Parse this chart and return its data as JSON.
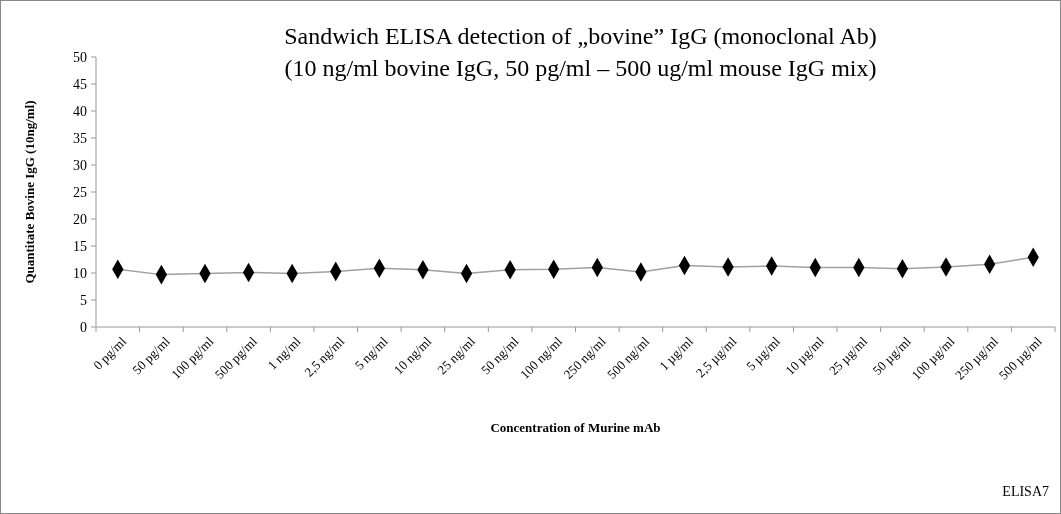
{
  "chart_data": {
    "type": "line",
    "title": "Sandwich ELISA  detection of „bovine” IgG (monoclonal Ab)",
    "subtitle": "(10 ng/ml bovine IgG, 50 pg/ml – 500 ug/ml mouse IgG mix)",
    "xlabel": "Concentration of Murine mAb",
    "ylabel": "Quantitate Bovine IgG (10ng/ml)",
    "categories": [
      "0 pg/ml",
      "50 pg/ml",
      "100 pg/ml",
      "500 pg/ml",
      "1 ng/ml",
      "2,5 ng/ml",
      "5 ng/ml",
      "10 ng/ml",
      "25 ng/ml",
      "50 ng/ml",
      "100 ng/ml",
      "250 ng/ml",
      "500 ng/ml",
      "1 µg/ml",
      "2,5 µg/ml",
      "5 µg/ml",
      "10 µg/ml",
      "25 µg/ml",
      "50 µg/ml",
      "100 µg/ml",
      "250 µg/ml",
      "500 µg/ml"
    ],
    "series": [
      {
        "color": "#000000",
        "values": [
          10.7,
          9.7,
          9.9,
          10.1,
          9.9,
          10.3,
          10.9,
          10.6,
          9.9,
          10.6,
          10.7,
          11.0,
          10.2,
          11.4,
          11.1,
          11.3,
          11.0,
          11.0,
          10.8,
          11.1,
          11.6,
          12.9
        ]
      }
    ],
    "ylim": [
      0,
      50
    ],
    "yticks": [
      0,
      5,
      10,
      15,
      20,
      25,
      30,
      35,
      40,
      45,
      50
    ],
    "grid": false,
    "marker": "diamond",
    "line_style": "solid",
    "annotations": [
      "ELISA7"
    ]
  }
}
